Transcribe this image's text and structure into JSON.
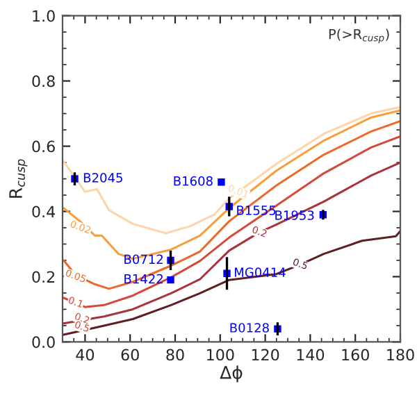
{
  "chart_data": {
    "type": "line",
    "xlabel": "Δϕ",
    "ylabel": "R$_{cusp}$",
    "xlim": [
      30,
      180
    ],
    "ylim": [
      0,
      1
    ],
    "xticks": [
      40,
      60,
      80,
      100,
      120,
      140,
      160,
      180
    ],
    "yticks": [
      {
        "value": 0,
        "label": "0.0"
      },
      {
        "value": 0.2,
        "label": "0.2"
      },
      {
        "value": 0.4,
        "label": "0.4"
      },
      {
        "value": 0.6,
        "label": "0.6"
      },
      {
        "value": 0.8,
        "label": "0.8"
      },
      {
        "value": 1,
        "label": "1.0"
      }
    ],
    "grid": false,
    "series": [
      {
        "color": "#fdd5a8",
        "x": [
          30.5,
          40,
          45.3,
          50.6,
          61.2,
          76,
          86.7,
          97.3,
          104,
          125,
          146,
          167,
          180
        ],
        "values": [
          0.553,
          0.46,
          0.468,
          0.404,
          0.362,
          0.333,
          0.355,
          0.39,
          0.44,
          0.546,
          0.638,
          0.7,
          0.72
        ]
      },
      {
        "color": "#f99d3a",
        "x": [
          30.5,
          37.9,
          44.3,
          47.4,
          54.8,
          61.2,
          78.2,
          91,
          104,
          125,
          146,
          167,
          180
        ],
        "values": [
          0.41,
          0.369,
          0.326,
          0.326,
          0.27,
          0.255,
          0.283,
          0.326,
          0.41,
          0.525,
          0.617,
          0.688,
          0.71
        ]
      },
      {
        "color": "#ec6a2c",
        "x": [
          30.5,
          35.8,
          44.3,
          50.6,
          61.2,
          78.2,
          91,
          104,
          125,
          146,
          167,
          180
        ],
        "values": [
          0.25,
          0.205,
          0.177,
          0.163,
          0.184,
          0.234,
          0.277,
          0.37,
          0.48,
          0.574,
          0.645,
          0.677
        ]
      },
      {
        "color": "#d34a3a",
        "x": [
          30.5,
          40,
          48.5,
          61.2,
          78.2,
          91,
          104,
          125,
          146,
          167,
          180
        ],
        "values": [
          0.135,
          0.107,
          0.113,
          0.142,
          0.198,
          0.248,
          0.32,
          0.418,
          0.517,
          0.596,
          0.63
        ]
      },
      {
        "color": "#a8343c",
        "x": [
          30.5,
          48.5,
          61.2,
          78.2,
          91,
          104,
          117.4,
          125,
          146,
          167,
          180
        ],
        "values": [
          0.057,
          0.078,
          0.1,
          0.149,
          0.192,
          0.28,
          0.336,
          0.36,
          0.43,
          0.51,
          0.55
        ]
      },
      {
        "color": "#5e1e24",
        "x": [
          30.5,
          48.5,
          61.2,
          78.2,
          91,
          104,
          125,
          135.5,
          146,
          163,
          178,
          180
        ],
        "values": [
          0.022,
          0.05,
          0.07,
          0.113,
          0.149,
          0.19,
          0.208,
          0.237,
          0.27,
          0.31,
          0.324,
          0.34
        ]
      },
      {
        "type": "scatter",
        "marker": "square",
        "color": "#0000ff",
        "x": [
          35.4,
          100.5,
          104,
          145.7,
          78,
          78,
          103,
          125.5
        ],
        "values": [
          0.5,
          0.49,
          0.415,
          0.39,
          0.25,
          0.19,
          0.21,
          0.04
        ],
        "errors": [
          0.02,
          null,
          0.03,
          0.015,
          0.03,
          null,
          0.05,
          0.02
        ]
      }
    ],
    "annotations": [
      "P(>R$_{cusp}$)",
      {
        "text": "B2045",
        "x": 39,
        "y": 0.5
      },
      {
        "text": "B1608",
        "x": 97,
        "y": 0.49
      },
      {
        "text": "B1555",
        "x": 107,
        "y": 0.4
      },
      {
        "text": "B1953",
        "x": 142,
        "y": 0.385
      },
      {
        "text": "B0712",
        "x": 75,
        "y": 0.25
      },
      {
        "text": "B1422",
        "x": 75,
        "y": 0.19
      },
      {
        "text": "MG0414",
        "x": 106,
        "y": 0.21
      },
      {
        "text": "B0128",
        "x": 122,
        "y": 0.04
      },
      {
        "text": "0.01",
        "x": 108,
        "y": 0.46
      },
      {
        "text": "0.02",
        "x": 37.9,
        "y": 0.35
      },
      {
        "text": "0.05",
        "x": 35.8,
        "y": 0.2
      },
      {
        "text": "0.1",
        "x": 35.8,
        "y": 0.12
      },
      {
        "text": "0.2",
        "x": 38.6,
        "y": 0.07
      },
      {
        "text": "0.5",
        "x": 38.6,
        "y": 0.045
      },
      {
        "text": "0.2",
        "x": 117.4,
        "y": 0.336
      },
      {
        "text": "0.5",
        "x": 135.5,
        "y": 0.237
      }
    ]
  }
}
